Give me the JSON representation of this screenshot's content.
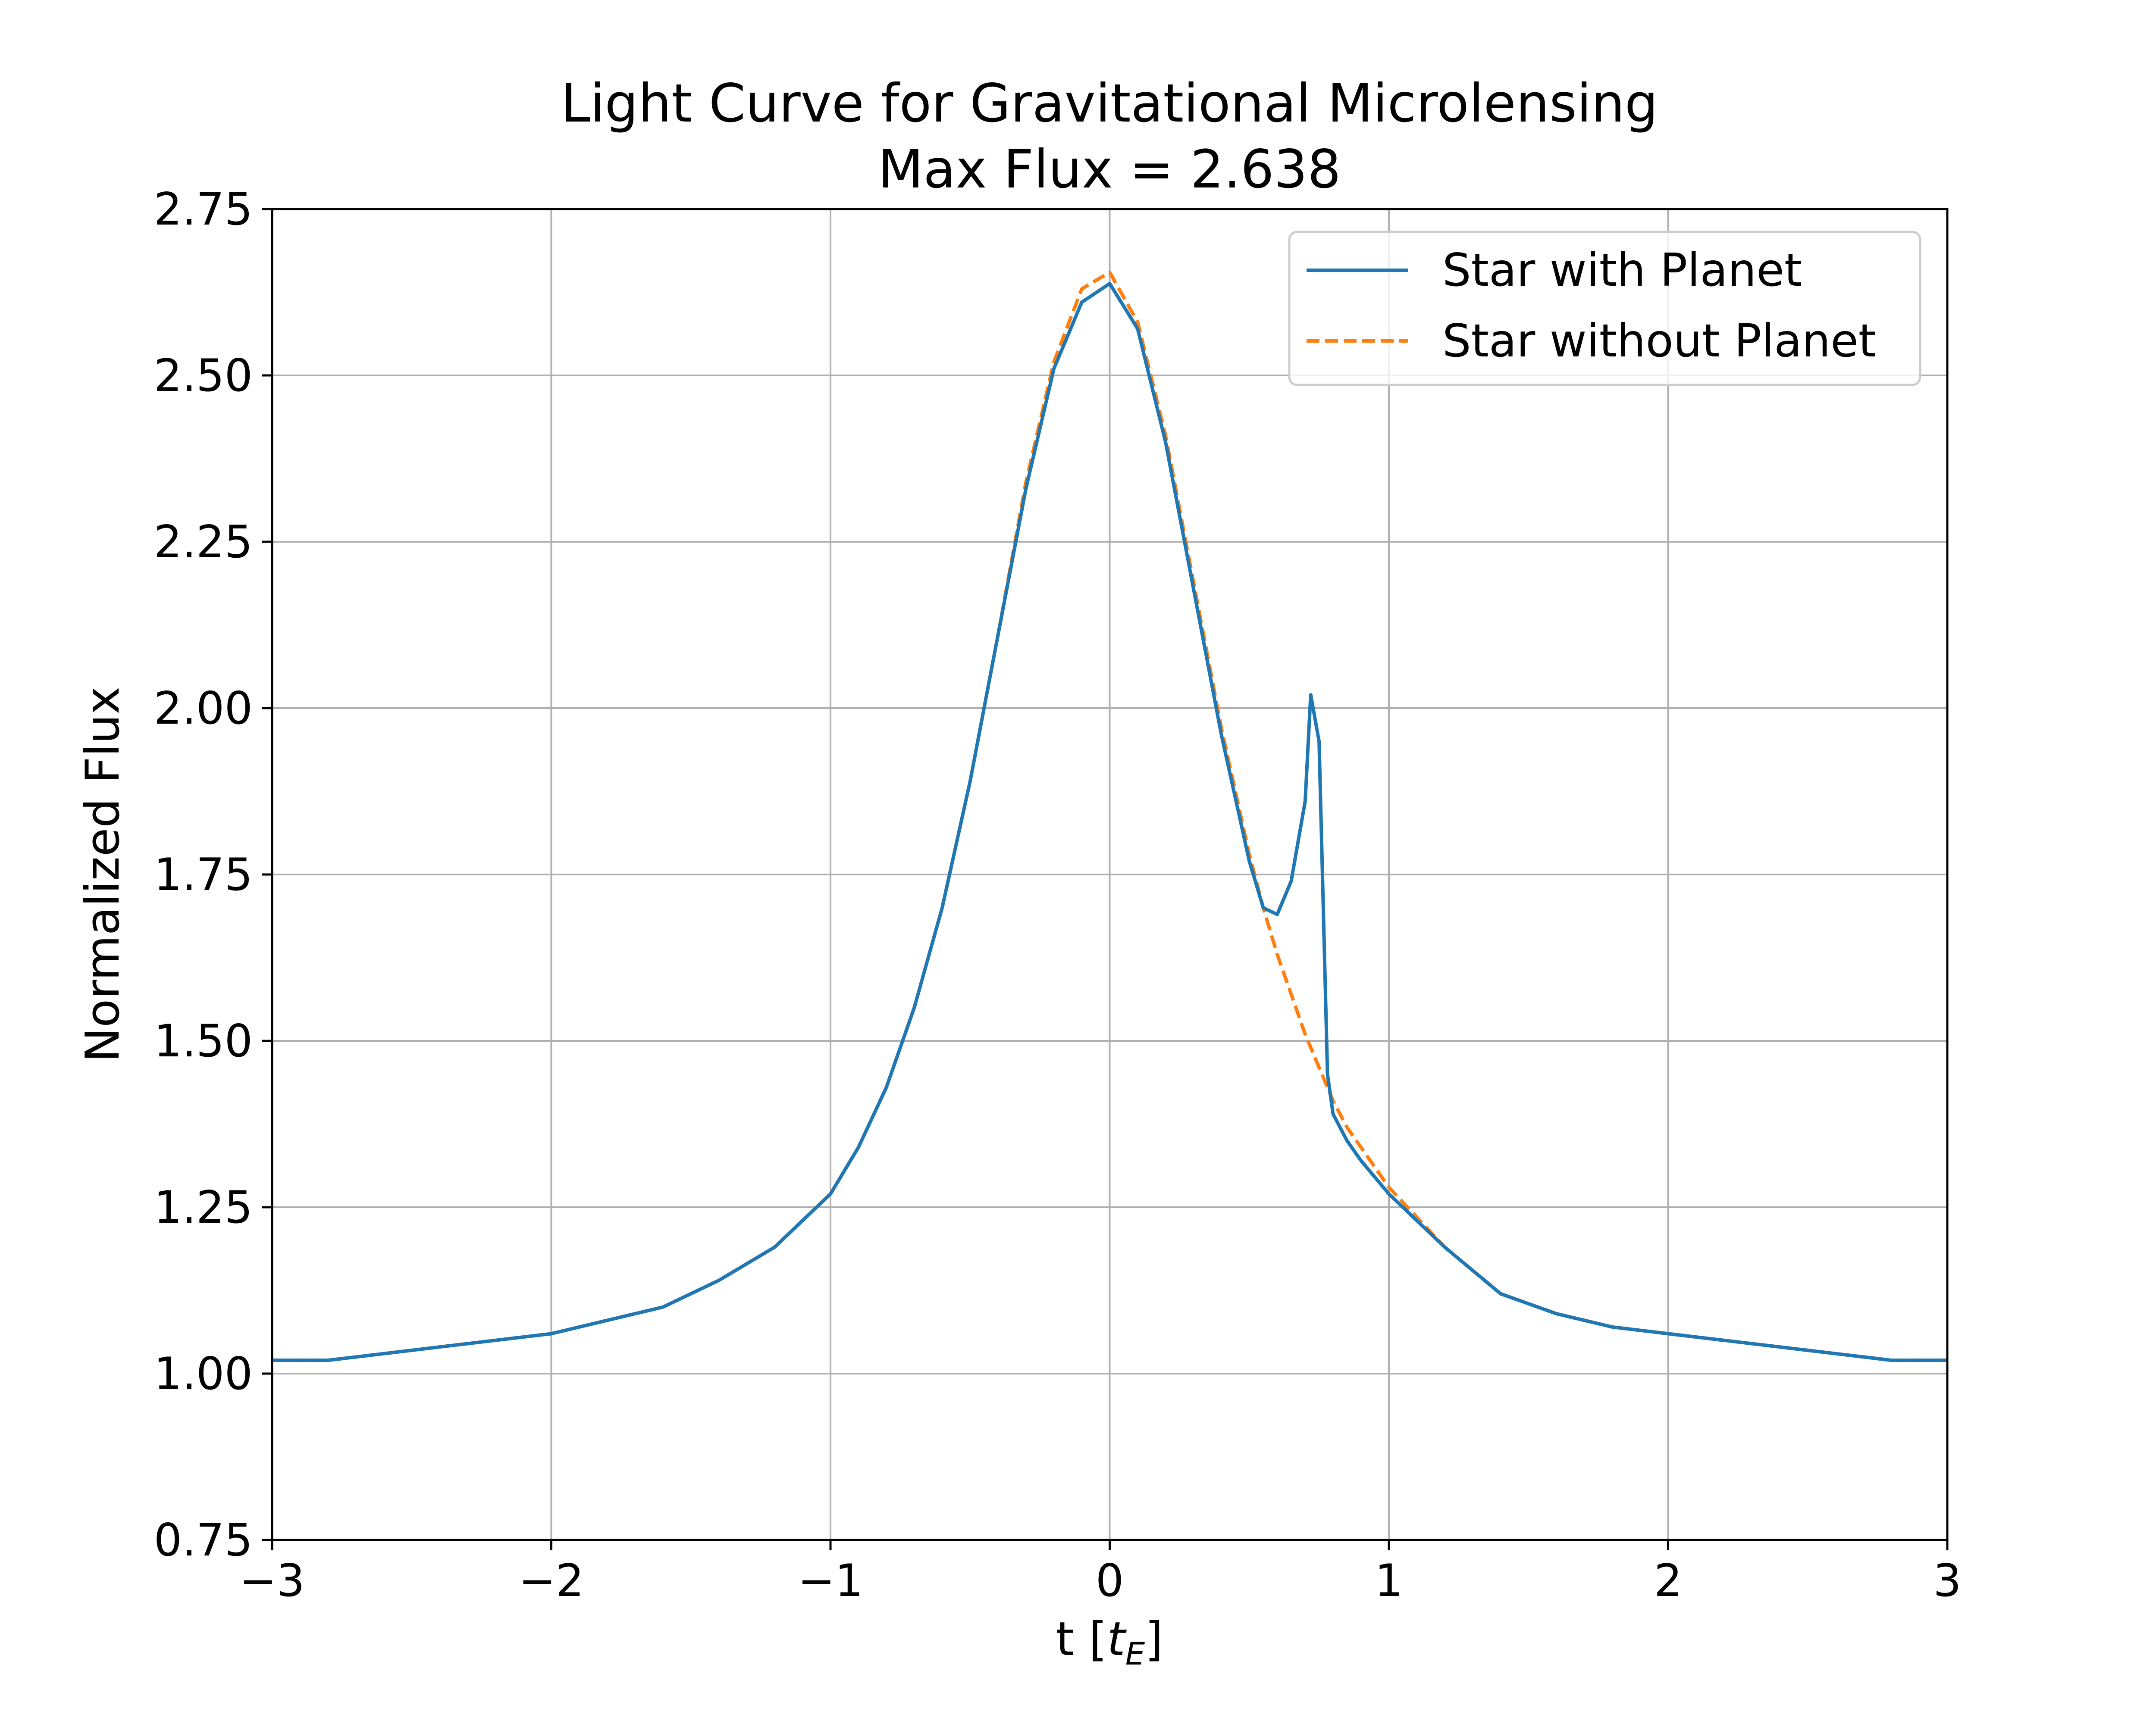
{
  "chart_data": {
    "type": "line",
    "title": "Light Curve for Gravitational Microlensing",
    "subtitle": "Max Flux = 2.638",
    "xlabel_main": "t [",
    "xlabel_var": "t",
    "xlabel_sub": "E",
    "xlabel_close": "]",
    "ylabel": "Normalized Flux",
    "xlim": [
      -3,
      3
    ],
    "ylim": [
      0.75,
      2.75
    ],
    "xticks": [
      -3,
      -2,
      -1,
      0,
      1,
      2,
      3
    ],
    "xtick_labels": [
      "−3",
      "−2",
      "−1",
      "0",
      "1",
      "2",
      "3"
    ],
    "yticks": [
      0.75,
      1.0,
      1.25,
      1.5,
      1.75,
      2.0,
      2.25,
      2.5,
      2.75
    ],
    "ytick_labels": [
      "0.75",
      "1.00",
      "1.25",
      "1.50",
      "1.75",
      "2.00",
      "2.25",
      "2.50",
      "2.75"
    ],
    "grid": true,
    "legend_position": "top-right",
    "x": [
      -3.0,
      -2.8,
      -2.6,
      -2.4,
      -2.2,
      -2.0,
      -1.8,
      -1.6,
      -1.4,
      -1.2,
      -1.0,
      -0.9,
      -0.8,
      -0.7,
      -0.6,
      -0.5,
      -0.4,
      -0.3,
      -0.2,
      -0.1,
      0.0,
      0.1,
      0.2,
      0.3,
      0.4,
      0.5,
      0.55,
      0.6,
      0.65,
      0.7,
      0.72,
      0.75,
      0.78,
      0.8,
      0.85,
      0.9,
      1.0,
      1.2,
      1.4,
      1.6,
      1.8,
      2.0,
      2.2,
      2.4,
      2.6,
      2.8,
      3.0
    ],
    "series": [
      {
        "name": "Star with Planet",
        "color": "#1f77b4",
        "style": "solid",
        "values": [
          1.02,
          1.02,
          1.03,
          1.04,
          1.05,
          1.06,
          1.08,
          1.1,
          1.14,
          1.19,
          1.27,
          1.34,
          1.43,
          1.55,
          1.7,
          1.89,
          2.11,
          2.33,
          2.51,
          2.61,
          2.638,
          2.57,
          2.4,
          2.18,
          1.96,
          1.77,
          1.7,
          1.69,
          1.74,
          1.86,
          2.02,
          1.95,
          1.45,
          1.39,
          1.35,
          1.32,
          1.27,
          1.19,
          1.12,
          1.09,
          1.07,
          1.06,
          1.05,
          1.04,
          1.03,
          1.02,
          1.02
        ]
      },
      {
        "name": "Star without Planet",
        "color": "#ff7f0e",
        "style": "dashed",
        "values": [
          1.02,
          1.02,
          1.03,
          1.04,
          1.05,
          1.06,
          1.08,
          1.1,
          1.14,
          1.19,
          1.27,
          1.34,
          1.43,
          1.55,
          1.7,
          1.89,
          2.11,
          2.34,
          2.52,
          2.63,
          2.655,
          2.58,
          2.41,
          2.19,
          1.97,
          1.78,
          1.7,
          1.63,
          1.57,
          1.51,
          1.49,
          1.46,
          1.43,
          1.41,
          1.37,
          1.34,
          1.28,
          1.19,
          1.12,
          1.09,
          1.07,
          1.06,
          1.05,
          1.04,
          1.03,
          1.02,
          1.02
        ]
      }
    ]
  }
}
